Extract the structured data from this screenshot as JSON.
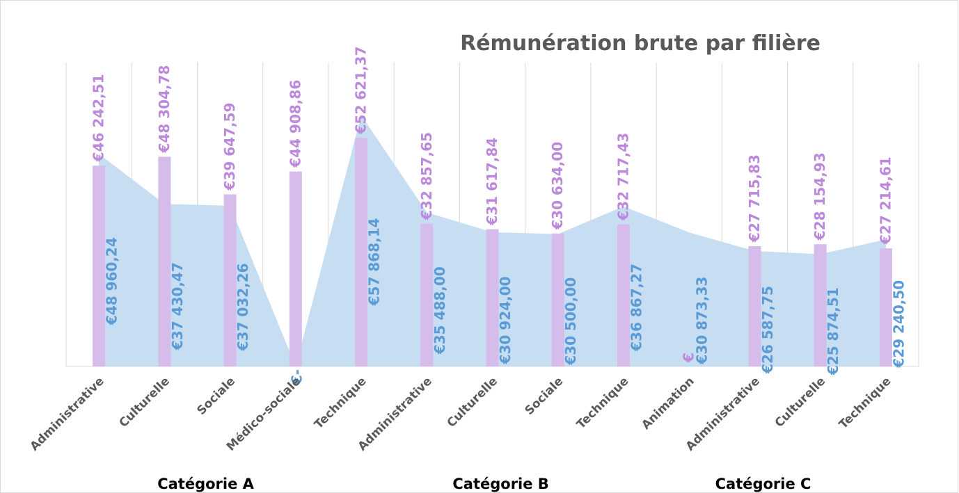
{
  "chart_data": {
    "type": "bar-area",
    "title": "Rémunération brute par filière",
    "groups": [
      {
        "name": "Catégorie A",
        "categories": [
          "Administrative",
          "Culturelle",
          "Sociale",
          "Médico-sociale",
          "Technique"
        ]
      },
      {
        "name": "Catégorie B",
        "categories": [
          "Administrative",
          "Culturelle",
          "Sociale",
          "Technique"
        ]
      },
      {
        "name": "Catégorie C",
        "categories": [
          "Animation",
          "Administrative",
          "Culturelle",
          "Technique"
        ]
      }
    ],
    "series": [
      {
        "type": "bar",
        "color": "#d6bcea",
        "label_color": "#bb88dc",
        "values": [
          46242.51,
          48304.78,
          39647.59,
          44908.86,
          52621.37,
          32857.65,
          31617.84,
          30634.0,
          32717.43,
          0,
          27715.83,
          28154.93,
          27214.61
        ],
        "value_labels": [
          "€46 242,51",
          "€48 304,78",
          "€39 647,59",
          "€44 908,86",
          "€52 621,37",
          "€32 857,65",
          "€31 617,84",
          "€30 634,00",
          "€32 717,43",
          "€",
          "€27 715,83",
          "€28 154,93",
          "€27 214,61"
        ]
      },
      {
        "type": "area",
        "color": "#c7ddf2",
        "label_color": "#5b9bd5",
        "values": [
          48960.24,
          37430.47,
          37032.26,
          0,
          57868.14,
          35488.0,
          30924.0,
          30500.0,
          36867.27,
          30873.33,
          26587.75,
          25874.51,
          29240.5
        ],
        "value_labels": [
          "€48 960,24",
          "€37 430,47",
          "€37 032,26",
          "€-",
          "€57 868,14",
          "€35 488,00",
          "€30 924,00",
          "€30 500,00",
          "€36 867,27",
          "€30 873,33",
          "€26 587,75",
          "€25 874,51",
          "€29 240,50"
        ]
      }
    ],
    "ylim": [
      0,
      70000
    ],
    "grid": true
  }
}
